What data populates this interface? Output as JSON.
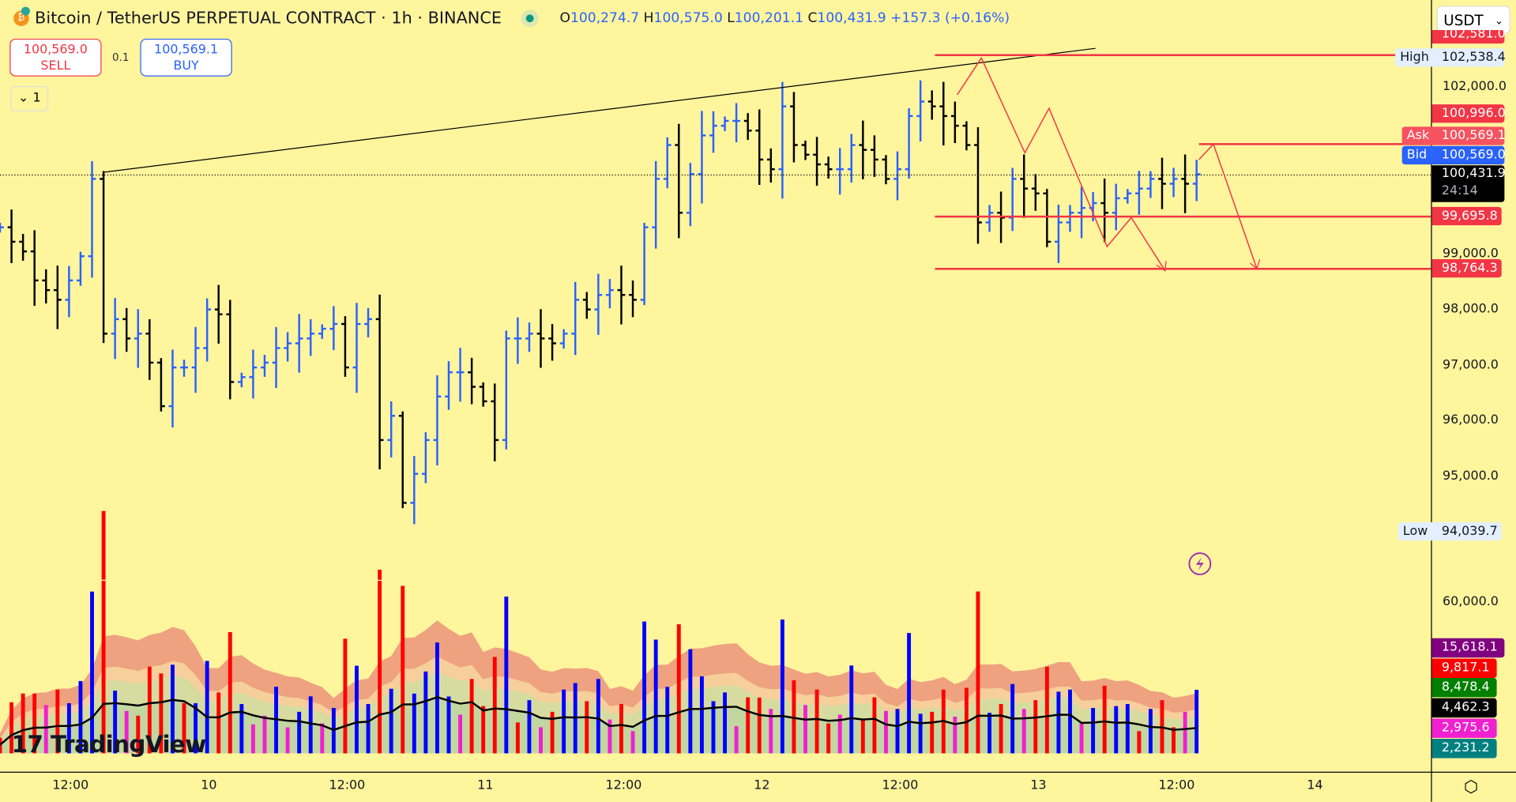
{
  "header": {
    "symbol": "Bitcoin / TetherUS PERPETUAL CONTRACT · 1h · BINANCE",
    "ohlc": {
      "o_label": "O",
      "o": "100,274.7",
      "h_label": "H",
      "h": "100,575.0",
      "l_label": "L",
      "l": "100,201.1",
      "c_label": "C",
      "c": "100,431.9",
      "change": "+157.3 (+0.16%)"
    }
  },
  "trade": {
    "sell_price": "100,569.0",
    "sell_label": "SELL",
    "spread": "0.1",
    "buy_price": "100,569.1",
    "buy_label": "BUY",
    "collapse_label": "1"
  },
  "currency": "USDT",
  "price_axis": {
    "ticks": [
      {
        "label": "102,000.0",
        "p": 102000
      },
      {
        "label": "99,000.0",
        "p": 99000
      },
      {
        "label": "98,000.0",
        "p": 98000
      },
      {
        "label": "97,000.0",
        "p": 97000
      },
      {
        "label": "96,000.0",
        "p": 96000
      },
      {
        "label": "95,000.0",
        "p": 95000
      }
    ],
    "hidden_label": "102,581.0",
    "high_tag": "High",
    "high": "102,538.4",
    "low_tag": "Low",
    "low": "94,039.7",
    "level1": "100,996.0",
    "ask_tag": "Ask",
    "ask": "100,569.1",
    "bid_tag": "Bid",
    "bid": "100,569.0",
    "last": "100,431.9",
    "countdown": "24:14",
    "level2": "99,695.8",
    "level3": "98,764.3"
  },
  "volume_axis": {
    "tick": "60,000.0",
    "labels": [
      {
        "v": "15,618.1",
        "color": "#800080"
      },
      {
        "v": "9,817.1",
        "color": "#ff0000"
      },
      {
        "v": "8,478.4",
        "color": "#008000"
      },
      {
        "v": "4,462.3",
        "color": "#000000"
      },
      {
        "v": "2,975.6",
        "color": "#f020d0"
      },
      {
        "v": "2,231.2",
        "color": "#008080"
      }
    ]
  },
  "time_axis": [
    "12:00",
    "10",
    "12:00",
    "11",
    "12:00",
    "12",
    "12:00",
    "13",
    "12:00",
    "14"
  ],
  "watermark": "TradingView",
  "colors": {
    "up": "#2962ff",
    "down": "#000000",
    "level": "#f23645",
    "bg": "#fff59d"
  },
  "closes": [
    99478,
    99218,
    99044,
    98522,
    98348,
    98174,
    98522,
    98957,
    100348,
    97565,
    97826,
    97478,
    97565,
    97044,
    96261,
    96957,
    96957,
    97305,
    98000,
    97913,
    96696,
    96783,
    96957,
    97044,
    97305,
    97391,
    97478,
    97565,
    97652,
    97739,
    96957,
    97739,
    97826,
    95652,
    96087,
    94522,
    95044,
    95652,
    96435,
    96870,
    96870,
    96609,
    96348,
    95652,
    97478,
    97478,
    97565,
    97478,
    97391,
    97565,
    98174,
    98000,
    98261,
    98348,
    98261,
    98174,
    99478,
    100348,
    100957,
    99739,
    100435,
    101130,
    101304,
    101391,
    101391,
    101217,
    100696,
    100522,
    101652,
    100957,
    100783,
    100609,
    100522,
    100522,
    100957,
    100870,
    100696,
    100348,
    100522,
    101478,
    101739,
    101652,
    101478,
    101304,
    100957,
    99565,
    99739,
    99652,
    100348,
    100174,
    100087,
    99218,
    99565,
    99739,
    99826,
    99913,
    99739,
    100000,
    100087,
    100174,
    100348,
    100261,
    100348,
    100261,
    100432
  ]
}
